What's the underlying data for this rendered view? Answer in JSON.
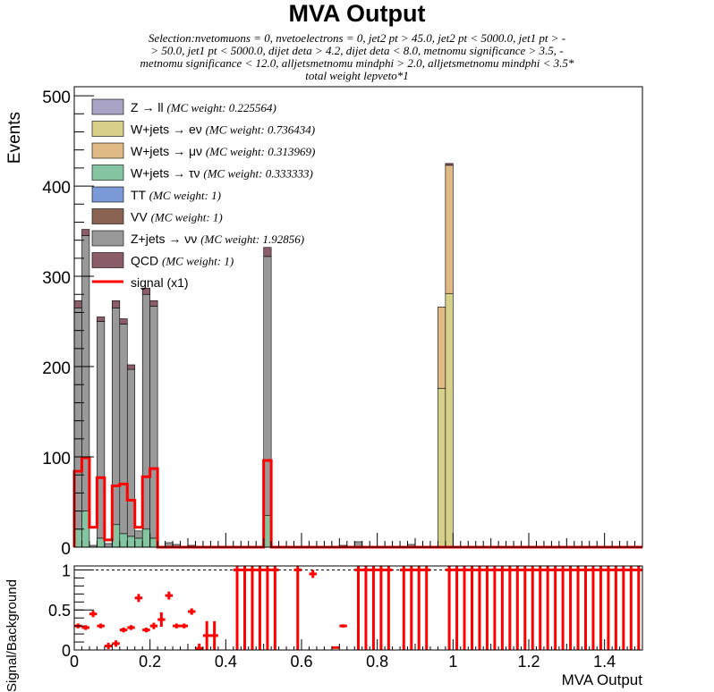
{
  "title": "MVA Output",
  "selection_lines": [
    "Selection:nvetomuons = 0, nvetoelectrons = 0, jet2 pt > 45.0, jet2 pt < 5000.0, jet1 pt > -",
    "> 50.0, jet1 pt < 5000.0, dijet deta > 4.2, dijet deta < 8.0, metnomu significance > 3.5, -",
    "metnomu significance < 12.0, alljetsmetnomu mindphi > 2.0, alljetsmetnomu mindphi < 3.5*",
    "total weight lepveto*1"
  ],
  "colors": {
    "Zll": "#a9a4c6",
    "Wenu": "#d6d08a",
    "Wmunu": "#e0b985",
    "Wtaunu": "#84c4a0",
    "TT": "#7c9ad8",
    "VV": "#8a6352",
    "Znunu": "#999999",
    "QCD": "#8a5d68",
    "signal": "#ff0000"
  },
  "chart_data": [
    {
      "type": "bar",
      "stacked": true,
      "x_bin_width": 0.02,
      "xlim": [
        0,
        1.5
      ],
      "ylim": [
        0,
        510
      ],
      "ylabel": "Events",
      "xlabel": "MVA Output",
      "x_ticks": [
        "0",
        "0.2",
        "0.4",
        "0.6",
        "0.8",
        "1",
        "1.2",
        "1.4"
      ],
      "y_ticks": [
        "0",
        "100",
        "200",
        "300",
        "400",
        "500"
      ],
      "legend_position": "top-left",
      "legend": [
        {
          "key": "Zll",
          "label": "Z → ll",
          "weight": "(MC weight: 0.225564)"
        },
        {
          "key": "Wenu",
          "label": "W+jets → eν",
          "weight": "(MC weight: 0.736434)"
        },
        {
          "key": "Wmunu",
          "label": "W+jets → μν",
          "weight": "(MC weight: 0.313969)"
        },
        {
          "key": "Wtaunu",
          "label": "W+jets → τν",
          "weight": "(MC weight: 0.333333)"
        },
        {
          "key": "TT",
          "label": "TT",
          "weight": "(MC weight: 1)"
        },
        {
          "key": "VV",
          "label": "VV",
          "weight": "(MC weight: 1)"
        },
        {
          "key": "Znunu",
          "label": "Z+jets → νν",
          "weight": "(MC weight: 1.92856)"
        },
        {
          "key": "QCD",
          "label": "QCD",
          "weight": "(MC weight: 1)"
        },
        {
          "key": "signal",
          "label": "signal (x1)",
          "weight": ""
        }
      ],
      "bins": [
        {
          "x": 0.0,
          "Wtaunu": 20,
          "Znunu": 245,
          "QCD": 8
        },
        {
          "x": 0.02,
          "Wtaunu": 40,
          "Znunu": 305,
          "QCD": 7
        },
        {
          "x": 0.04,
          "Znunu": 2
        },
        {
          "x": 0.06,
          "Wtaunu": 10,
          "Znunu": 240,
          "QCD": 5
        },
        {
          "x": 0.08,
          "Znunu": 4
        },
        {
          "x": 0.1,
          "Wtaunu": 25,
          "Znunu": 240,
          "QCD": 8
        },
        {
          "x": 0.12,
          "Wtaunu": 15,
          "Znunu": 232,
          "QCD": 6
        },
        {
          "x": 0.14,
          "Wtaunu": 12,
          "Znunu": 185,
          "QCD": 5
        },
        {
          "x": 0.16,
          "Wtaunu": 10,
          "Znunu": 8
        },
        {
          "x": 0.18,
          "Wtaunu": 20,
          "Znunu": 260,
          "QCD": 7
        },
        {
          "x": 0.2,
          "Wtaunu": 10,
          "Znunu": 257,
          "QCD": 6
        },
        {
          "x": 0.24,
          "Znunu": 5
        },
        {
          "x": 0.26,
          "Znunu": 3
        },
        {
          "x": 0.3,
          "Znunu": 2
        },
        {
          "x": 0.34,
          "Znunu": 1
        },
        {
          "x": 0.5,
          "Wtaunu": 35,
          "Znunu": 287,
          "QCD": 10
        },
        {
          "x": 0.7,
          "Znunu": 2
        },
        {
          "x": 0.74,
          "Znunu": 6
        },
        {
          "x": 0.88,
          "Znunu": 3
        },
        {
          "x": 0.96,
          "Zll": 1,
          "Wenu": 175,
          "Wmunu": 90
        },
        {
          "x": 0.98,
          "Zll": 1,
          "Wenu": 280,
          "Wmunu": 142,
          "QCD": 2
        }
      ],
      "signal": [
        {
          "x": 0.0,
          "y": 84
        },
        {
          "x": 0.02,
          "y": 99
        },
        {
          "x": 0.04,
          "y": 22
        },
        {
          "x": 0.06,
          "y": 77
        },
        {
          "x": 0.08,
          "y": 8
        },
        {
          "x": 0.1,
          "y": 68
        },
        {
          "x": 0.12,
          "y": 70
        },
        {
          "x": 0.14,
          "y": 52
        },
        {
          "x": 0.16,
          "y": 22
        },
        {
          "x": 0.18,
          "y": 78
        },
        {
          "x": 0.2,
          "y": 87
        },
        {
          "x": 0.22,
          "y": 0
        },
        {
          "x": 0.5,
          "y": 96
        },
        {
          "x": 0.52,
          "y": 0
        }
      ]
    },
    {
      "type": "scatter",
      "ylabel": "Signal/Background",
      "xlim": [
        0,
        1.5
      ],
      "ylim": [
        0,
        1.05
      ],
      "x_ticks": [
        "0",
        "0.2",
        "0.4",
        "0.6",
        "0.8",
        "1",
        "1.2",
        "1.4"
      ],
      "y_ticks": [
        "0",
        "0.5",
        "1"
      ],
      "reference_line": 1,
      "points": [
        {
          "x": 0.01,
          "y": 0.3,
          "err": 0.03
        },
        {
          "x": 0.03,
          "y": 0.28,
          "err": 0.03
        },
        {
          "x": 0.05,
          "y": 0.45,
          "err": 0.04
        },
        {
          "x": 0.07,
          "y": 0.3,
          "err": 0.03
        },
        {
          "x": 0.09,
          "y": 0.05,
          "err": 0.04
        },
        {
          "x": 0.11,
          "y": 0.08,
          "err": 0.04
        },
        {
          "x": 0.13,
          "y": 0.25,
          "err": 0.03
        },
        {
          "x": 0.15,
          "y": 0.28,
          "err": 0.03
        },
        {
          "x": 0.17,
          "y": 0.65,
          "err": 0.05
        },
        {
          "x": 0.19,
          "y": 0.25,
          "err": 0.03
        },
        {
          "x": 0.21,
          "y": 0.3,
          "err": 0.04
        },
        {
          "x": 0.23,
          "y": 0.38,
          "err": 0.09
        },
        {
          "x": 0.25,
          "y": 0.68,
          "err": 0.05
        },
        {
          "x": 0.27,
          "y": 0.3,
          "err": 0.03
        },
        {
          "x": 0.29,
          "y": 0.3,
          "err": 0.03
        },
        {
          "x": 0.31,
          "y": 0.48,
          "err": 0.04
        },
        {
          "x": 0.33,
          "y": 0.02,
          "err": 0.06
        },
        {
          "x": 0.35,
          "y": 0.18,
          "err": 0.18
        },
        {
          "x": 0.37,
          "y": 0.18,
          "err": 0.18
        },
        {
          "x": 0.43,
          "y": 1.0,
          "err": 1.0
        },
        {
          "x": 0.45,
          "y": 1.0,
          "err": 1.0
        },
        {
          "x": 0.47,
          "y": 1.0,
          "err": 1.0
        },
        {
          "x": 0.49,
          "y": 1.0,
          "err": 1.0
        },
        {
          "x": 0.51,
          "y": 1.0,
          "err": 1.0
        },
        {
          "x": 0.53,
          "y": 1.0,
          "err": 1.0
        },
        {
          "x": 0.59,
          "y": 1.0,
          "err": 1.0
        },
        {
          "x": 0.63,
          "y": 0.95,
          "err": 0.05
        },
        {
          "x": 0.69,
          "y": 0.03,
          "err": 0.01
        },
        {
          "x": 0.71,
          "y": 0.3,
          "err": 0.02
        },
        {
          "x": 0.75,
          "y": 1.0,
          "err": 1.0
        },
        {
          "x": 0.77,
          "y": 1.0,
          "err": 1.0
        },
        {
          "x": 0.79,
          "y": 1.0,
          "err": 1.0
        },
        {
          "x": 0.81,
          "y": 1.0,
          "err": 1.0
        },
        {
          "x": 0.83,
          "y": 1.0,
          "err": 1.0
        },
        {
          "x": 0.87,
          "y": 1.0,
          "err": 1.0
        },
        {
          "x": 0.89,
          "y": 1.0,
          "err": 1.0
        },
        {
          "x": 0.91,
          "y": 1.0,
          "err": 1.0
        },
        {
          "x": 0.93,
          "y": 1.0,
          "err": 1.0
        },
        {
          "x": 0.99,
          "y": 1.0,
          "err": 1.0
        },
        {
          "x": 1.01,
          "y": 1.0,
          "err": 1.0
        },
        {
          "x": 1.03,
          "y": 1.0,
          "err": 1.0
        },
        {
          "x": 1.05,
          "y": 1.0,
          "err": 1.0
        },
        {
          "x": 1.07,
          "y": 1.0,
          "err": 1.0
        },
        {
          "x": 1.09,
          "y": 1.0,
          "err": 1.0
        },
        {
          "x": 1.11,
          "y": 1.0,
          "err": 1.0
        },
        {
          "x": 1.13,
          "y": 1.0,
          "err": 1.0
        },
        {
          "x": 1.15,
          "y": 1.0,
          "err": 1.0
        },
        {
          "x": 1.17,
          "y": 1.0,
          "err": 1.0
        },
        {
          "x": 1.19,
          "y": 1.0,
          "err": 1.0
        },
        {
          "x": 1.21,
          "y": 1.0,
          "err": 1.0
        },
        {
          "x": 1.23,
          "y": 1.0,
          "err": 1.0
        },
        {
          "x": 1.25,
          "y": 1.0,
          "err": 1.0
        },
        {
          "x": 1.27,
          "y": 1.0,
          "err": 1.0
        },
        {
          "x": 1.29,
          "y": 1.0,
          "err": 1.0
        },
        {
          "x": 1.31,
          "y": 1.0,
          "err": 1.0
        },
        {
          "x": 1.33,
          "y": 1.0,
          "err": 1.0
        },
        {
          "x": 1.35,
          "y": 1.0,
          "err": 1.0
        },
        {
          "x": 1.37,
          "y": 1.0,
          "err": 1.0
        },
        {
          "x": 1.39,
          "y": 1.0,
          "err": 1.0
        },
        {
          "x": 1.41,
          "y": 1.0,
          "err": 1.0
        },
        {
          "x": 1.43,
          "y": 1.0,
          "err": 1.0
        },
        {
          "x": 1.45,
          "y": 1.0,
          "err": 1.0
        },
        {
          "x": 1.47,
          "y": 1.0,
          "err": 1.0
        },
        {
          "x": 1.49,
          "y": 1.0,
          "err": 1.0
        }
      ]
    }
  ]
}
